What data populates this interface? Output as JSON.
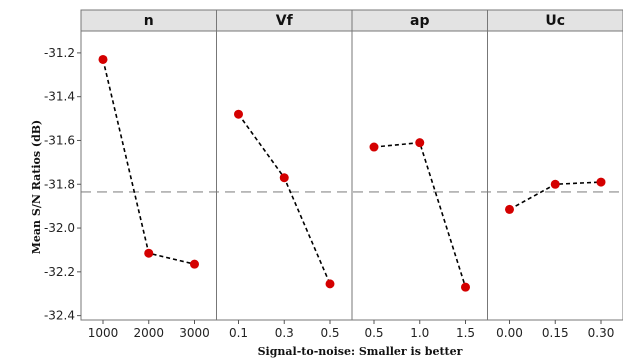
{
  "chart_data": {
    "type": "line",
    "xlabel": "Signal-to-noise: Smaller is better",
    "ylabel": "Mean S/N Ratios (dB)",
    "ylim": [
      -32.42,
      -31.1
    ],
    "y_ticks": [
      "-31.2",
      "-31.4",
      "-31.6",
      "-31.8",
      "-32.0",
      "-32.2",
      "-32.4"
    ],
    "y_tick_values": [
      -31.2,
      -31.4,
      -31.6,
      -31.8,
      -32.0,
      -32.2,
      -32.4
    ],
    "reference_line": -31.835,
    "grid": false,
    "line_style": "dashed",
    "marker_color": "#d40000",
    "line_color": "#000000",
    "reference_color": "#8a8a8a",
    "header_color": "#e3e3e3",
    "panels": [
      {
        "factor": "n",
        "categories": [
          "1000",
          "2000",
          "3000"
        ],
        "values": [
          -31.23,
          -32.115,
          -32.165
        ]
      },
      {
        "factor": "Vf",
        "categories": [
          "0.1",
          "0.3",
          "0.5"
        ],
        "values": [
          -31.48,
          -31.77,
          -32.255
        ]
      },
      {
        "factor": "ap",
        "categories": [
          "0.5",
          "1.0",
          "1.5"
        ],
        "values": [
          -31.63,
          -31.61,
          -32.27
        ]
      },
      {
        "factor": "Uc",
        "categories": [
          "0.00",
          "0.15",
          "0.30"
        ],
        "values": [
          -31.915,
          -31.8,
          -31.79
        ]
      }
    ]
  }
}
